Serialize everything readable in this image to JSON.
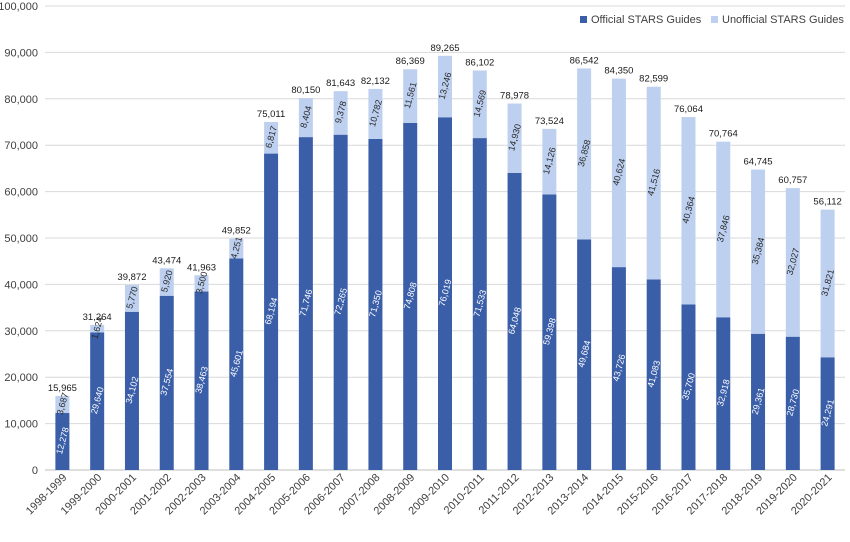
{
  "chart_data": {
    "type": "bar",
    "stacked": true,
    "title": "",
    "xlabel": "",
    "ylabel": "",
    "ylim": [
      0,
      100000
    ],
    "yticks": [
      0,
      10000,
      20000,
      30000,
      40000,
      50000,
      60000,
      70000,
      80000,
      90000,
      100000
    ],
    "ytick_labels": [
      "0",
      "10,000",
      "20,000",
      "30,000",
      "40,000",
      "50,000",
      "60,000",
      "70,000",
      "80,000",
      "90,000",
      "100,000"
    ],
    "grid": true,
    "legend_position": "top-right",
    "categories": [
      "1998-1999",
      "1999-2000",
      "2000-2001",
      "2001-2002",
      "2002-2003",
      "2003-2004",
      "2004-2005",
      "2005-2006",
      "2006-2007",
      "2007-2008",
      "2008-2009",
      "2009-2010",
      "2010-2011",
      "2011-2012",
      "2012-2013",
      "2013-2014",
      "2014-2015",
      "2015-2016",
      "2016-2017",
      "2017-2018",
      "2018-2019",
      "2019-2020",
      "2020-2021"
    ],
    "series": [
      {
        "name": "Official STARS Guides",
        "color": "#3a5ea8",
        "values": [
          12278,
          29640,
          34102,
          37554,
          38463,
          45601,
          68194,
          71746,
          72265,
          71350,
          74808,
          76019,
          71533,
          64048,
          59398,
          49684,
          43726,
          41083,
          35700,
          32918,
          29361,
          28730,
          24291
        ],
        "labels": [
          "12,278",
          "29,640",
          "34,102",
          "37,554",
          "38,463",
          "45,601",
          "68,194",
          "71,746",
          "72,265",
          "71,350",
          "74,808",
          "76,019",
          "71,533",
          "64,048",
          "59,398",
          "49,684",
          "43,726",
          "41,083",
          "35,700",
          "32,918",
          "29,361",
          "28,730",
          "24,291"
        ]
      },
      {
        "name": "Unofficial STARS Guides",
        "color": "#bdd0f0",
        "values": [
          3687,
          1624,
          5770,
          5920,
          3500,
          4251,
          6817,
          8404,
          9378,
          10782,
          11561,
          13246,
          14569,
          14930,
          14126,
          36858,
          40624,
          41516,
          40364,
          37846,
          35384,
          32027,
          31821
        ],
        "labels": [
          "3,687",
          "1,624",
          "5,770",
          "5,920",
          "3,500",
          "4,251",
          "6,817",
          "8,404",
          "9,378",
          "10,782",
          "11,561",
          "13,246",
          "14,569",
          "14,930",
          "14,126",
          "36,858",
          "40,624",
          "41,516",
          "40,364",
          "37,846",
          "35,384",
          "32,027",
          "31,821"
        ]
      }
    ],
    "totals": [
      15965,
      31264,
      39872,
      43474,
      41963,
      49852,
      75011,
      80150,
      81643,
      82132,
      86369,
      89265,
      86102,
      78978,
      73524,
      86542,
      84350,
      82599,
      76064,
      70764,
      64745,
      60757,
      56112
    ],
    "total_labels": [
      "15,965",
      "31,264",
      "39,872",
      "43,474",
      "41,963",
      "49,852",
      "75,011",
      "80,150",
      "81,643",
      "82,132",
      "86,369",
      "89,265",
      "86,102",
      "78,978",
      "73,524",
      "86,542",
      "84,350",
      "82,599",
      "76,064",
      "70,764",
      "64,745",
      "60,757",
      "56,112"
    ]
  }
}
